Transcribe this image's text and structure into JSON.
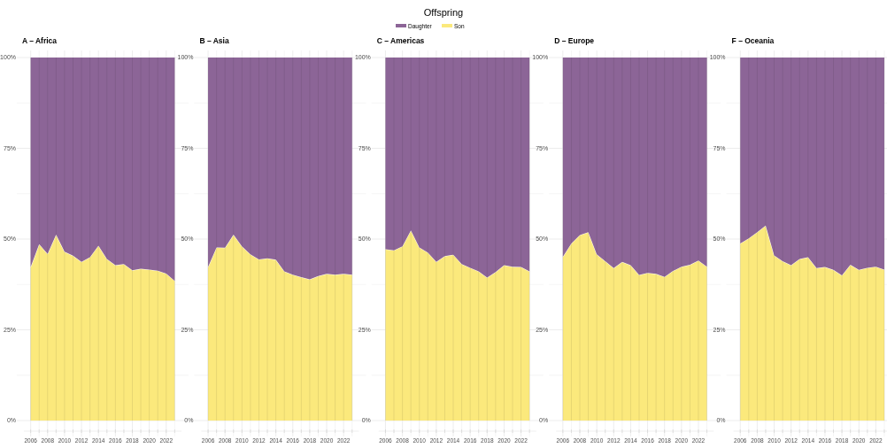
{
  "chart_data": [
    {
      "type": "area",
      "stacked": true,
      "title": "A – Africa",
      "legend_title": "Offspring",
      "legend": "top",
      "grid": true,
      "x": [
        2006,
        2007,
        2008,
        2009,
        2010,
        2011,
        2012,
        2013,
        2014,
        2015,
        2016,
        2017,
        2018,
        2019,
        2020,
        2021,
        2022,
        2023
      ],
      "xlim": [
        2005.2,
        2023.8
      ],
      "xticks": [
        2006,
        {
          "value": 2007,
          "label": null
        },
        2008,
        {
          "value": 2009,
          "label": null
        },
        2010,
        {
          "value": 2011,
          "label": null
        },
        2012,
        {
          "value": 2013,
          "label": null
        },
        2014,
        {
          "value": 2015,
          "label": null
        },
        2016,
        {
          "value": 2017,
          "label": null
        },
        2018,
        {
          "value": 2019,
          "label": null
        },
        2020,
        {
          "value": 2021,
          "label": null
        },
        2022,
        {
          "value": 2023,
          "label": null
        }
      ],
      "ylim": [
        0,
        100
      ],
      "yticks": [
        {
          "value": 0,
          "label": "0%"
        },
        {
          "value": 12.5,
          "label": null
        },
        {
          "value": 25,
          "label": "25%"
        },
        {
          "value": 37.5,
          "label": null
        },
        {
          "value": 50,
          "label": "50%"
        },
        {
          "value": 62.5,
          "label": null
        },
        {
          "value": 75,
          "label": "75%"
        },
        {
          "value": 87.5,
          "label": null
        },
        {
          "value": 100,
          "label": "100%"
        }
      ],
      "series": [
        {
          "name": "Son",
          "color": "#fbe97c",
          "values": [
            42.3,
            48.6,
            45.9,
            51.2,
            46.5,
            45.4,
            43.7,
            45.0,
            48.2,
            44.5,
            42.8,
            43.1,
            41.4,
            41.8,
            41.6,
            41.3,
            40.5,
            38.5
          ]
        },
        {
          "name": "Daughter",
          "color": "#8c6597",
          "values": [
            57.7,
            51.4,
            54.1,
            48.8,
            53.5,
            54.6,
            56.3,
            55.0,
            51.8,
            55.5,
            57.2,
            56.9,
            58.6,
            58.2,
            58.4,
            58.7,
            59.5,
            61.5
          ]
        }
      ]
    },
    {
      "type": "area",
      "stacked": true,
      "title": "B – Asia",
      "grid": true,
      "x": [
        2006,
        2007,
        2008,
        2009,
        2010,
        2011,
        2012,
        2013,
        2014,
        2015,
        2016,
        2017,
        2018,
        2019,
        2020,
        2021,
        2022,
        2023
      ],
      "xlim": [
        2005.2,
        2023.8
      ],
      "xticks": [
        2006,
        {
          "value": 2007,
          "label": null
        },
        2008,
        {
          "value": 2009,
          "label": null
        },
        2010,
        {
          "value": 2011,
          "label": null
        },
        2012,
        {
          "value": 2013,
          "label": null
        },
        2014,
        {
          "value": 2015,
          "label": null
        },
        2016,
        {
          "value": 2017,
          "label": null
        },
        2018,
        {
          "value": 2019,
          "label": null
        },
        2020,
        {
          "value": 2021,
          "label": null
        },
        2022,
        {
          "value": 2023,
          "label": null
        }
      ],
      "ylim": [
        0,
        100
      ],
      "yticks": [
        {
          "value": 0,
          "label": "0%"
        },
        {
          "value": 12.5,
          "label": null
        },
        {
          "value": 25,
          "label": "25%"
        },
        {
          "value": 37.5,
          "label": null
        },
        {
          "value": 50,
          "label": "50%"
        },
        {
          "value": 62.5,
          "label": null
        },
        {
          "value": 75,
          "label": "75%"
        },
        {
          "value": 87.5,
          "label": null
        },
        {
          "value": 100,
          "label": "100%"
        }
      ],
      "series": [
        {
          "color": "#fbe97c",
          "values": [
            42.3,
            47.7,
            47.6,
            51.2,
            48.0,
            45.8,
            44.4,
            44.7,
            44.3,
            41.1,
            40.2,
            39.5,
            38.9,
            39.8,
            40.4,
            40.2,
            40.4,
            40.2
          ]
        },
        {
          "color": "#8c6597",
          "values": [
            57.7,
            52.3,
            52.4,
            48.8,
            52.0,
            54.2,
            55.6,
            55.3,
            55.7,
            58.9,
            59.8,
            60.5,
            61.1,
            60.2,
            59.6,
            59.8,
            59.6,
            59.8
          ]
        }
      ]
    },
    {
      "type": "area",
      "stacked": true,
      "title": "C – Americas",
      "grid": true,
      "x": [
        2006,
        2007,
        2008,
        2009,
        2010,
        2011,
        2012,
        2013,
        2014,
        2015,
        2016,
        2017,
        2018,
        2019,
        2020,
        2021,
        2022,
        2023
      ],
      "xlim": [
        2005.2,
        2023.8
      ],
      "xticks": [
        2006,
        {
          "value": 2007,
          "label": null
        },
        2008,
        {
          "value": 2009,
          "label": null
        },
        2010,
        {
          "value": 2011,
          "label": null
        },
        2012,
        {
          "value": 2013,
          "label": null
        },
        2014,
        {
          "value": 2015,
          "label": null
        },
        2016,
        {
          "value": 2017,
          "label": null
        },
        2018,
        {
          "value": 2019,
          "label": null
        },
        2020,
        {
          "value": 2021,
          "label": null
        },
        2022,
        {
          "value": 2023,
          "label": null
        }
      ],
      "ylim": [
        0,
        100
      ],
      "yticks": [
        {
          "value": 0,
          "label": "0%"
        },
        {
          "value": 12.5,
          "label": null
        },
        {
          "value": 25,
          "label": "25%"
        },
        {
          "value": 37.5,
          "label": null
        },
        {
          "value": 50,
          "label": "50%"
        },
        {
          "value": 62.5,
          "label": null
        },
        {
          "value": 75,
          "label": "75%"
        },
        {
          "value": 87.5,
          "label": null
        },
        {
          "value": 100,
          "label": "100%"
        }
      ],
      "series": [
        {
          "color": "#fbe97c",
          "values": [
            47.2,
            46.9,
            48.0,
            52.4,
            47.7,
            46.3,
            43.7,
            45.3,
            45.7,
            43.1,
            42.1,
            41.1,
            39.4,
            40.9,
            42.8,
            42.4,
            42.3,
            41.1
          ]
        },
        {
          "color": "#8c6597",
          "values": [
            52.8,
            53.1,
            52.0,
            47.6,
            52.3,
            53.7,
            56.3,
            54.7,
            54.3,
            56.9,
            57.9,
            58.9,
            60.6,
            59.1,
            57.2,
            57.6,
            57.7,
            58.9
          ]
        }
      ]
    },
    {
      "type": "area",
      "stacked": true,
      "title": "D – Europe",
      "grid": true,
      "x": [
        2006,
        2007,
        2008,
        2009,
        2010,
        2011,
        2012,
        2013,
        2014,
        2015,
        2016,
        2017,
        2018,
        2019,
        2020,
        2021,
        2022,
        2023
      ],
      "xlim": [
        2005.2,
        2023.8
      ],
      "xticks": [
        2006,
        {
          "value": 2007,
          "label": null
        },
        2008,
        {
          "value": 2009,
          "label": null
        },
        2010,
        {
          "value": 2011,
          "label": null
        },
        2012,
        {
          "value": 2013,
          "label": null
        },
        2014,
        {
          "value": 2015,
          "label": null
        },
        2016,
        {
          "value": 2017,
          "label": null
        },
        2018,
        {
          "value": 2019,
          "label": null
        },
        2020,
        {
          "value": 2021,
          "label": null
        },
        2022,
        {
          "value": 2023,
          "label": null
        }
      ],
      "ylim": [
        0,
        100
      ],
      "yticks": [
        {
          "value": 0,
          "label": "0%"
        },
        {
          "value": 12.5,
          "label": null
        },
        {
          "value": 25,
          "label": "25%"
        },
        {
          "value": 37.5,
          "label": null
        },
        {
          "value": 50,
          "label": "50%"
        },
        {
          "value": 62.5,
          "label": null
        },
        {
          "value": 75,
          "label": "75%"
        },
        {
          "value": 87.5,
          "label": null
        },
        {
          "value": 100,
          "label": "100%"
        }
      ],
      "series": [
        {
          "color": "#fbe97c",
          "values": [
            45.1,
            48.8,
            51.1,
            51.9,
            45.8,
            43.9,
            42.0,
            43.7,
            42.8,
            40.1,
            40.7,
            40.4,
            39.6,
            41.2,
            42.4,
            42.9,
            44.1,
            42.4
          ]
        },
        {
          "color": "#8c6597",
          "values": [
            54.9,
            51.2,
            48.9,
            48.1,
            54.2,
            56.1,
            58.0,
            56.3,
            57.2,
            59.9,
            59.3,
            59.6,
            60.4,
            58.8,
            57.6,
            57.1,
            55.9,
            57.6
          ]
        }
      ]
    },
    {
      "type": "area",
      "stacked": true,
      "title": "F – Oceania",
      "grid": true,
      "x": [
        2006,
        2007,
        2008,
        2009,
        2010,
        2011,
        2012,
        2013,
        2014,
        2015,
        2016,
        2017,
        2018,
        2019,
        2020,
        2021,
        2022,
        2023
      ],
      "xlim": [
        2005.2,
        2023.8
      ],
      "xticks": [
        2006,
        {
          "value": 2007,
          "label": null
        },
        2008,
        {
          "value": 2009,
          "label": null
        },
        2010,
        {
          "value": 2011,
          "label": null
        },
        2012,
        {
          "value": 2013,
          "label": null
        },
        2014,
        {
          "value": 2015,
          "label": null
        },
        2016,
        {
          "value": 2017,
          "label": null
        },
        2018,
        {
          "value": 2019,
          "label": null
        },
        2020,
        {
          "value": 2021,
          "label": null
        },
        2022,
        {
          "value": 2023,
          "label": null
        }
      ],
      "ylim": [
        0,
        100
      ],
      "yticks": [
        {
          "value": 0,
          "label": "0%"
        },
        {
          "value": 12.5,
          "label": null
        },
        {
          "value": 25,
          "label": "25%"
        },
        {
          "value": 37.5,
          "label": null
        },
        {
          "value": 50,
          "label": "50%"
        },
        {
          "value": 62.5,
          "label": null
        },
        {
          "value": 75,
          "label": "75%"
        },
        {
          "value": 87.5,
          "label": null
        },
        {
          "value": 100,
          "label": "100%"
        }
      ],
      "series": [
        {
          "color": "#fbe97c",
          "values": [
            48.8,
            50.2,
            51.9,
            53.7,
            45.5,
            43.9,
            42.8,
            44.5,
            45.0,
            42.0,
            42.3,
            41.5,
            40.0,
            42.9,
            41.5,
            42.1,
            42.4,
            41.6
          ]
        },
        {
          "color": "#8c6597",
          "values": [
            51.2,
            49.8,
            48.1,
            46.3,
            54.5,
            56.1,
            57.2,
            55.5,
            55.0,
            58.0,
            57.7,
            58.5,
            60.0,
            57.1,
            58.5,
            57.9,
            57.6,
            58.4
          ]
        }
      ]
    }
  ]
}
